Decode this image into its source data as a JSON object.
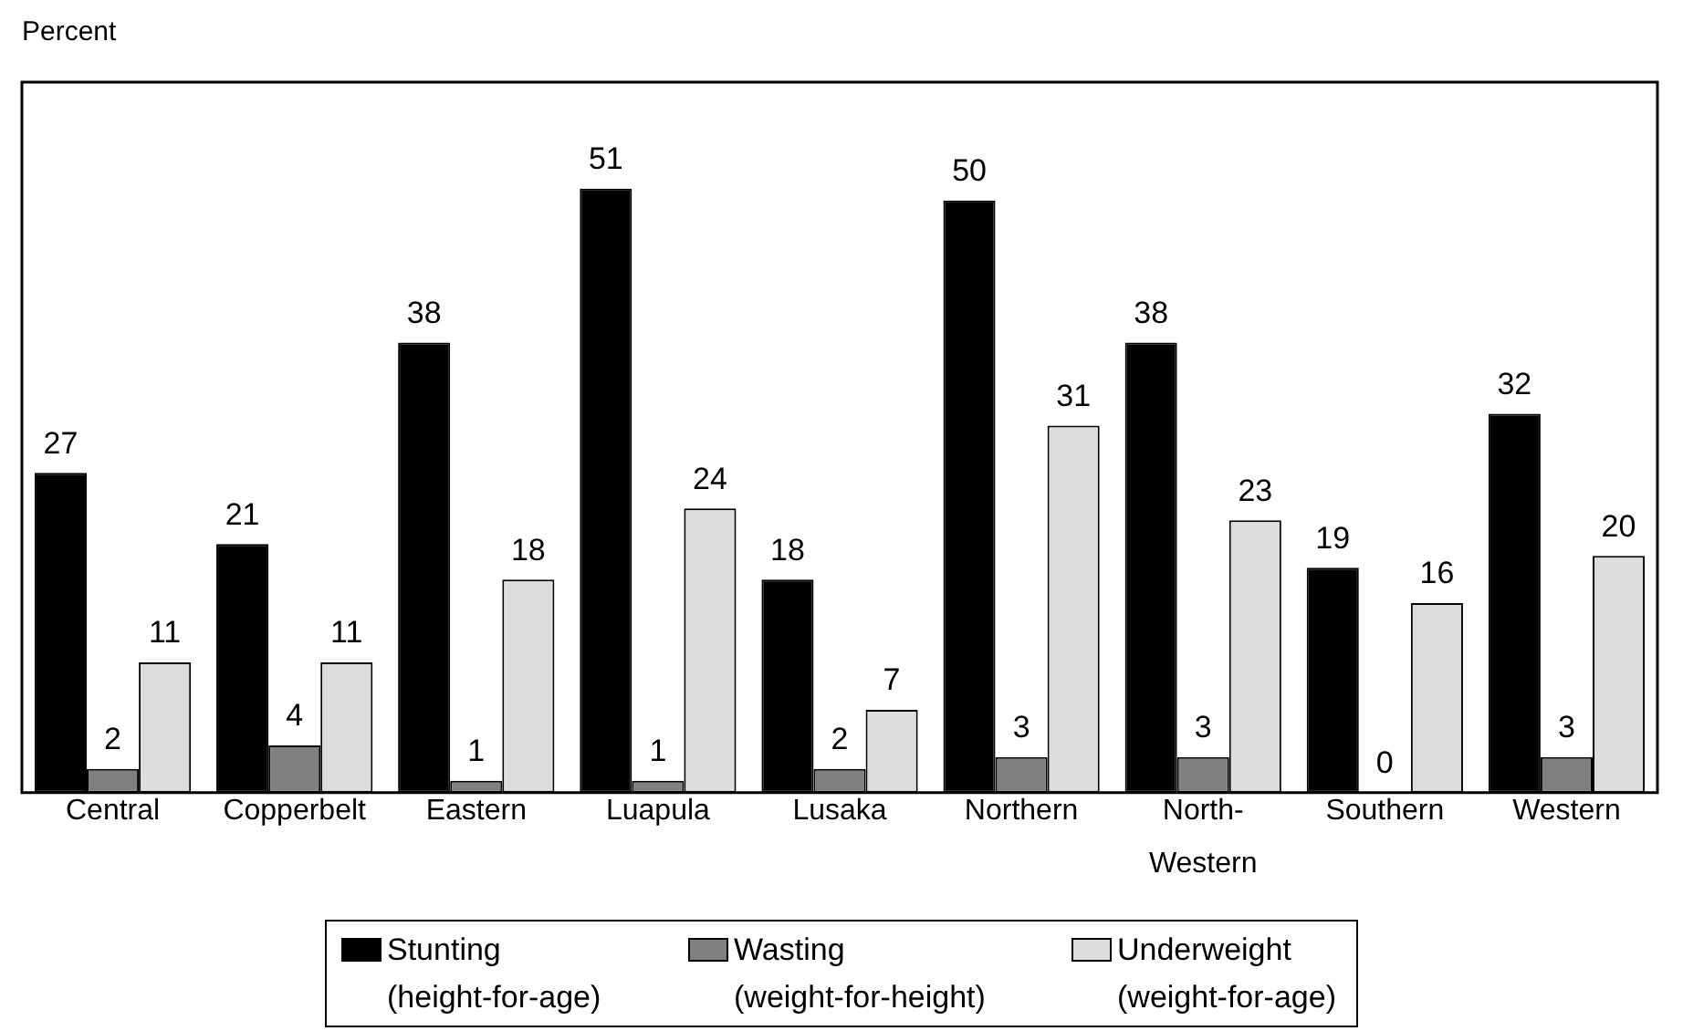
{
  "chart_data": {
    "type": "bar",
    "ylabel": "Percent",
    "categories": [
      "Central",
      "Copperbelt",
      "Eastern",
      "Luapula",
      "Lusaka",
      "Northern",
      "North-Western",
      "Southern",
      "Western"
    ],
    "series": [
      {
        "name": "Stunting (height-for-age)",
        "color": "#000000",
        "values": [
          27,
          21,
          38,
          51,
          18,
          50,
          38,
          19,
          32
        ]
      },
      {
        "name": "Wasting (weight-for-height)",
        "color": "#808080",
        "values": [
          2,
          4,
          1,
          1,
          2,
          3,
          3,
          0,
          3
        ]
      },
      {
        "name": "Underweight (weight-for-age)",
        "color": "#dddddd",
        "values": [
          11,
          11,
          18,
          24,
          7,
          31,
          23,
          16,
          20
        ]
      }
    ],
    "ylim": [
      0,
      60
    ],
    "data_labels": true,
    "legend": "bottom",
    "tick_labels": "x",
    "grid": false
  }
}
